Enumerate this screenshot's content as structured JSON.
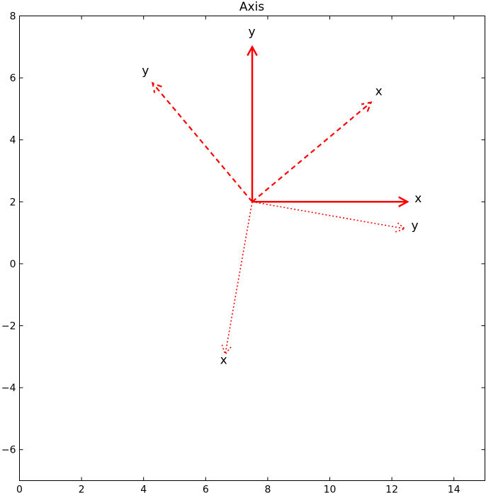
{
  "chart_data": {
    "type": "vector",
    "title": "Axis",
    "xlabel": "",
    "ylabel": "",
    "xlim": [
      0,
      15
    ],
    "ylim": [
      -7,
      8
    ],
    "xticks": [
      0,
      2,
      4,
      6,
      8,
      10,
      12,
      14
    ],
    "yticks": [
      -6,
      -4,
      -2,
      0,
      2,
      4,
      6,
      8
    ],
    "grid": false,
    "color": "#ff0000",
    "origin": [
      7.5,
      2
    ],
    "frames": [
      {
        "style": "solid",
        "vectors": [
          {
            "label": "x",
            "dx": 5.0,
            "dy": 0.0,
            "label_pos": [
              12.85,
              2.1
            ]
          },
          {
            "label": "y",
            "dx": 0.0,
            "dy": 5.0,
            "label_pos": [
              7.49,
              7.47
            ]
          }
        ]
      },
      {
        "style": "dashed",
        "vectors": [
          {
            "label": "x",
            "dx": 3.83,
            "dy": 3.21,
            "label_pos": [
              11.58,
              5.56
            ]
          },
          {
            "label": "y",
            "dx": -3.21,
            "dy": 3.83,
            "label_pos": [
              4.06,
              6.22
            ]
          }
        ]
      },
      {
        "style": "dotted",
        "vectors": [
          {
            "label": "x",
            "dx": -0.87,
            "dy": -4.92,
            "label_pos": [
              6.58,
              -3.12
            ]
          },
          {
            "label": "y",
            "dx": 4.92,
            "dy": -0.87,
            "label_pos": [
              12.74,
              1.22
            ]
          }
        ]
      }
    ]
  }
}
